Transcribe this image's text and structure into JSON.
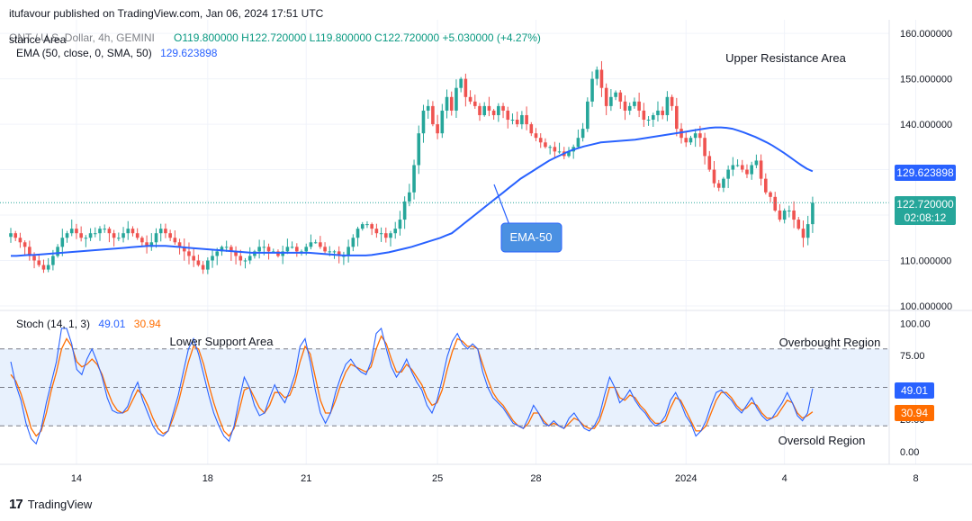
{
  "header": {
    "published": "itufavour published on TradingView.com, Jan 06, 2024 17:51 UTC",
    "symbol_line_left": "stance Area",
    "symbol": "ONT / U.S. Dollar, 4h, GEMINI",
    "ohlc": "O119.800000  H122.720000  L119.800000  C122.720000  +5.030000 (+4.27%)",
    "ema_label": "EMA (50, close, 0, SMA, 50)",
    "ema_value": "129.623898",
    "stoch_label": "Stoch (14, 1, 3)",
    "stoch_k": "49.01",
    "stoch_d": "30.94"
  },
  "annotations": {
    "upper_resistance": "Upper Resistance Area",
    "lower_support": "Lower Support Area",
    "ema_callout": "EMA-50",
    "overbought": "Overbought Region",
    "oversold": "Oversold Region"
  },
  "price_tags": {
    "ema": "129.623898",
    "last": "122.720000",
    "countdown": "02:08:12",
    "stoch_k": "49.01",
    "stoch_d": "30.94"
  },
  "brand": {
    "logo": "17",
    "name": "TradingView"
  },
  "colors": {
    "up": "#26a69a",
    "down": "#ef5350",
    "ema": "#2962ff",
    "stoch_k": "#2962ff",
    "stoch_d": "#ff6d00",
    "band": "#e8f1fd"
  },
  "chart_data": [
    {
      "type": "candlestick",
      "title": "ONT / U.S. Dollar, 4h, GEMINI",
      "ylim": [
        99,
        163
      ],
      "y_ticks": [
        "100.000000",
        "110.000000",
        "120.000000",
        "130.000000",
        "140.000000",
        "150.000000",
        "160.000000"
      ],
      "y_tick_values": [
        100,
        110,
        120,
        130,
        140,
        150,
        160
      ],
      "x_tick_labels": [
        "14",
        "18",
        "21",
        "25",
        "28",
        "2024",
        "4",
        "8"
      ],
      "x_tick_index": [
        14,
        42,
        63,
        91,
        112,
        144,
        165,
        193
      ],
      "close": [
        116,
        115,
        114,
        113,
        111,
        110,
        109,
        108,
        109,
        111,
        113,
        115,
        116,
        117,
        116,
        115,
        115,
        116,
        116,
        117,
        117,
        116,
        115,
        115,
        116,
        117,
        116,
        115,
        114,
        113,
        114,
        116,
        117,
        116,
        115,
        114,
        113,
        112,
        111,
        110,
        109,
        108,
        110,
        111,
        112,
        113,
        113,
        112,
        111,
        110,
        110,
        111,
        112,
        113,
        113,
        112,
        112,
        111,
        112,
        113,
        113,
        112,
        112,
        113,
        114,
        114,
        113,
        112,
        112,
        112,
        111,
        111,
        113,
        115,
        117,
        118,
        118,
        117,
        116,
        116,
        115,
        116,
        117,
        119,
        123,
        125,
        131,
        138,
        143,
        144,
        140,
        138,
        143,
        146,
        143,
        148,
        150,
        146,
        145,
        144,
        142,
        144,
        143,
        142,
        144,
        143,
        141,
        141,
        140,
        142,
        140,
        138,
        137,
        136,
        135,
        135,
        134,
        134,
        133,
        134,
        135,
        137,
        139,
        145,
        150,
        152,
        148,
        144,
        146,
        147,
        145,
        143,
        144,
        145,
        143,
        141,
        141,
        142,
        143,
        142,
        146,
        144,
        139,
        137,
        136,
        137,
        138,
        137,
        133,
        130,
        127,
        126,
        128,
        130,
        131,
        131,
        130,
        129,
        131,
        132,
        128,
        125,
        124,
        121,
        119,
        121,
        121,
        119,
        117,
        115,
        118,
        122.72
      ],
      "ema": [
        111,
        111,
        111.1,
        111.2,
        111.2,
        111.3,
        111.4,
        111.5,
        111.6,
        111.7,
        111.8,
        111.9,
        112,
        112.1,
        112.2,
        112.3,
        112.4,
        112.5,
        112.6,
        112.7,
        112.8,
        112.9,
        113,
        113.1,
        113.2,
        113.2,
        113.2,
        113.2,
        113.1,
        113,
        112.9,
        112.8,
        112.7,
        112.6,
        112.5,
        112.4,
        112.3,
        112.2,
        112.1,
        112,
        111.9,
        111.8,
        111.7,
        111.7,
        111.7,
        111.7,
        111.7,
        111.7,
        111.7,
        111.7,
        111.7,
        111.7,
        111.7,
        111.6,
        111.5,
        111.4,
        111.3,
        111.2,
        111.1,
        111.1,
        111.1,
        111.1,
        111.1,
        111.2,
        111.4,
        111.6,
        111.8,
        112.1,
        112.4,
        112.7,
        113,
        113.4,
        113.8,
        114.2,
        114.6,
        115,
        115.5,
        116,
        117,
        118,
        119,
        120,
        121,
        122,
        123,
        124,
        125,
        126,
        127,
        128,
        128.8,
        129.6,
        130.4,
        131.2,
        132,
        132.6,
        133.2,
        133.8,
        134.3,
        134.7,
        135.1,
        135.4,
        135.7,
        136,
        136.1,
        136.2,
        136.3,
        136.4,
        136.5,
        136.6,
        136.8,
        137,
        137.2,
        137.4,
        137.6,
        137.8,
        138,
        138.2,
        138.4,
        138.6,
        138.8,
        139,
        139.2,
        139.3,
        139.3,
        139.2,
        139,
        138.6,
        138.2,
        137.7,
        137.2,
        136.6,
        136,
        135.3,
        134.5,
        133.7,
        132.8,
        131.9,
        131,
        130.2,
        129.624
      ],
      "stoch_ylim": [
        -10,
        110
      ],
      "stoch_ticks": [
        "0.00",
        "25.00",
        "50.00",
        "75.00",
        "100.00"
      ],
      "stoch_tick_values": [
        0,
        25,
        50,
        75,
        100
      ],
      "overbought_level": 80,
      "oversold_level": 20,
      "stoch_k": [
        70,
        52,
        40,
        22,
        10,
        6,
        18,
        38,
        54,
        70,
        96,
        96,
        84,
        64,
        60,
        72,
        80,
        70,
        58,
        42,
        32,
        30,
        30,
        35,
        46,
        54,
        40,
        30,
        20,
        14,
        12,
        16,
        30,
        44,
        62,
        80,
        88,
        76,
        60,
        44,
        30,
        20,
        12,
        8,
        20,
        40,
        58,
        50,
        36,
        28,
        30,
        42,
        52,
        44,
        38,
        48,
        60,
        82,
        88,
        70,
        48,
        30,
        22,
        30,
        46,
        58,
        68,
        72,
        66,
        62,
        60,
        70,
        92,
        96,
        80,
        66,
        58,
        64,
        72,
        62,
        54,
        48,
        36,
        30,
        40,
        56,
        74,
        86,
        92,
        84,
        80,
        84,
        80,
        62,
        50,
        42,
        38,
        34,
        28,
        22,
        20,
        18,
        26,
        36,
        30,
        22,
        20,
        24,
        20,
        18,
        26,
        30,
        24,
        18,
        16,
        20,
        28,
        44,
        58,
        50,
        38,
        42,
        48,
        40,
        34,
        30,
        24,
        20,
        22,
        28,
        40,
        46,
        38,
        28,
        22,
        12,
        16,
        24,
        36,
        46,
        48,
        44,
        40,
        34,
        30,
        36,
        42,
        34,
        28,
        24,
        26,
        32,
        38,
        46,
        38,
        28,
        24,
        30,
        49.01
      ],
      "stoch_d": [
        60,
        55,
        45,
        32,
        18,
        12,
        16,
        30,
        48,
        62,
        80,
        88,
        82,
        70,
        66,
        68,
        72,
        68,
        60,
        48,
        38,
        32,
        30,
        32,
        40,
        48,
        44,
        36,
        26,
        18,
        14,
        16,
        26,
        38,
        54,
        70,
        82,
        80,
        68,
        52,
        38,
        26,
        16,
        12,
        18,
        32,
        48,
        50,
        42,
        34,
        30,
        36,
        46,
        46,
        42,
        44,
        54,
        70,
        82,
        76,
        58,
        40,
        30,
        30,
        40,
        52,
        62,
        68,
        66,
        64,
        62,
        66,
        80,
        90,
        84,
        72,
        62,
        62,
        68,
        64,
        58,
        52,
        42,
        36,
        38,
        48,
        64,
        78,
        88,
        86,
        82,
        82,
        80,
        68,
        56,
        46,
        40,
        36,
        30,
        24,
        20,
        18,
        22,
        30,
        30,
        24,
        20,
        22,
        20,
        18,
        22,
        26,
        24,
        20,
        18,
        18,
        24,
        36,
        50,
        50,
        42,
        40,
        44,
        42,
        36,
        32,
        26,
        22,
        22,
        24,
        34,
        42,
        40,
        32,
        24,
        16,
        16,
        20,
        30,
        40,
        46,
        46,
        42,
        36,
        32,
        34,
        38,
        36,
        30,
        26,
        26,
        28,
        34,
        40,
        38,
        30,
        26,
        28,
        30.94
      ]
    }
  ]
}
